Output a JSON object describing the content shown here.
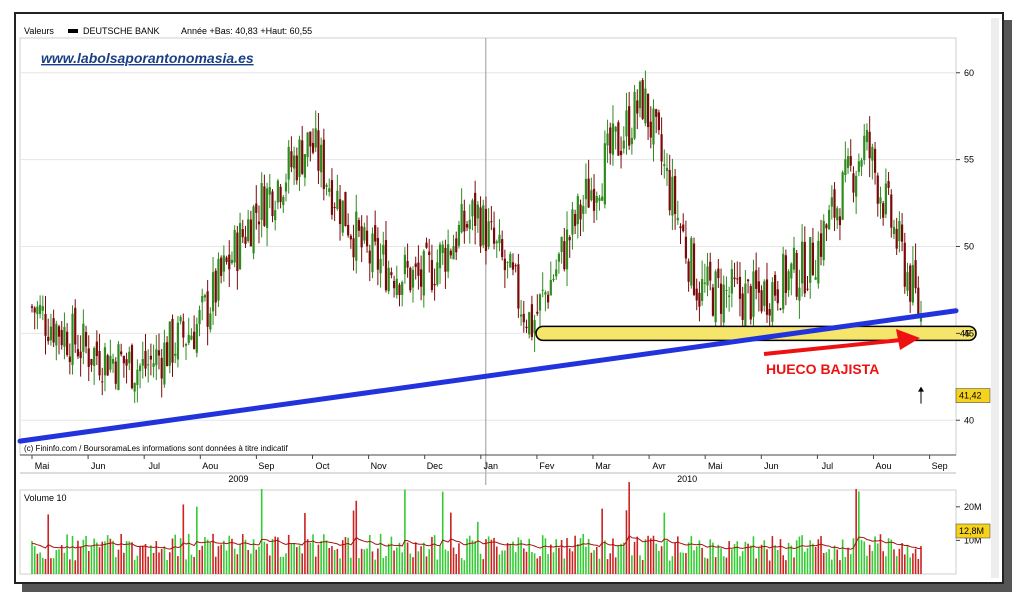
{
  "header": {
    "prefix": "Valeurs",
    "series_name": "DEUTSCHE BANK",
    "stats": "Année +Bas: 40,83 +Haut: 60,55"
  },
  "watermark": "www.labolsaporantonomasia.es",
  "source_note": "(c) Fininfo.com / BoursoramaLes informations sont données à titre indicatif",
  "annotation": "HUECO BAJISTA",
  "last_price_label": "41,42",
  "support_label": "45",
  "volume_title": "Volume 10",
  "volume_last_label": "12,8M",
  "colors": {
    "up_candle": "#2e8b1e",
    "down_candle": "#7a0a0a",
    "trendline": "#2233dd",
    "support_fill": "#f5e56b",
    "arrow": "#ee1111",
    "volume_up": "#33cc33",
    "volume_down": "#cc2222",
    "volume_ma": "#aa1111"
  },
  "chart_data": [
    {
      "type": "candlestick",
      "y_ticks": [
        40,
        45,
        50,
        55,
        60
      ],
      "ylim": [
        38,
        62
      ],
      "x_months": [
        "Mai",
        "Jun",
        "Jul",
        "Aou",
        "Sep",
        "Oct",
        "Nov",
        "Dec",
        "Jan",
        "Fev",
        "Mar",
        "Avr",
        "Mai",
        "Jun",
        "Jul",
        "Aou",
        "Sep"
      ],
      "x_years": [
        "2009",
        "2010"
      ],
      "monthly_closes": [
        46.5,
        44,
        43,
        45.5,
        52,
        56,
        49.5,
        48,
        52,
        45.5,
        53,
        58.5,
        47.5,
        47,
        49,
        56,
        46
      ],
      "support_level": 45,
      "trendline": {
        "start": 38.8,
        "end": 46.3
      },
      "last_price": 41.42
    },
    {
      "type": "bar",
      "title": "Volume 10",
      "y_ticks": [
        "10M",
        "20M"
      ],
      "last_value_label": "12,8M"
    }
  ]
}
